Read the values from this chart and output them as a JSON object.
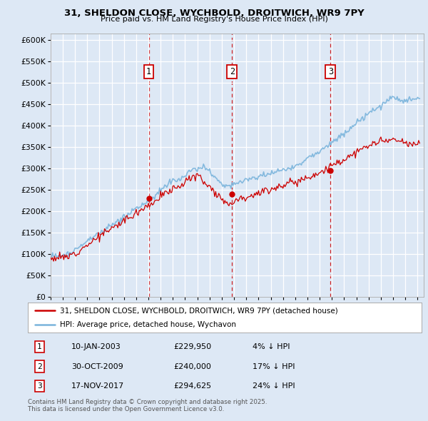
{
  "title1": "31, SHELDON CLOSE, WYCHBOLD, DROITWICH, WR9 7PY",
  "title2": "Price paid vs. HM Land Registry's House Price Index (HPI)",
  "ytick_values": [
    0,
    50000,
    100000,
    150000,
    200000,
    250000,
    300000,
    350000,
    400000,
    450000,
    500000,
    550000,
    600000
  ],
  "ylim": [
    0,
    615000
  ],
  "xlim_start": 1995.0,
  "xlim_end": 2025.5,
  "bg_color": "#dde8f5",
  "plot_bg_color": "#dde8f5",
  "grid_color": "#ffffff",
  "hpi_color": "#7ab4dc",
  "price_color": "#cc0000",
  "sale1_date": 2003.03,
  "sale1_price": 229950,
  "sale2_date": 2009.83,
  "sale2_price": 240000,
  "sale3_date": 2017.88,
  "sale3_price": 294625,
  "legend_line1": "31, SHELDON CLOSE, WYCHBOLD, DROITWICH, WR9 7PY (detached house)",
  "legend_line2": "HPI: Average price, detached house, Wychavon",
  "table_entries": [
    {
      "num": "1",
      "date": "10-JAN-2003",
      "price": "£229,950",
      "pct": "4% ↓ HPI"
    },
    {
      "num": "2",
      "date": "30-OCT-2009",
      "price": "£240,000",
      "pct": "17% ↓ HPI"
    },
    {
      "num": "3",
      "date": "17-NOV-2017",
      "price": "£294,625",
      "pct": "24% ↓ HPI"
    }
  ],
  "footnote": "Contains HM Land Registry data © Crown copyright and database right 2025.\nThis data is licensed under the Open Government Licence v3.0."
}
